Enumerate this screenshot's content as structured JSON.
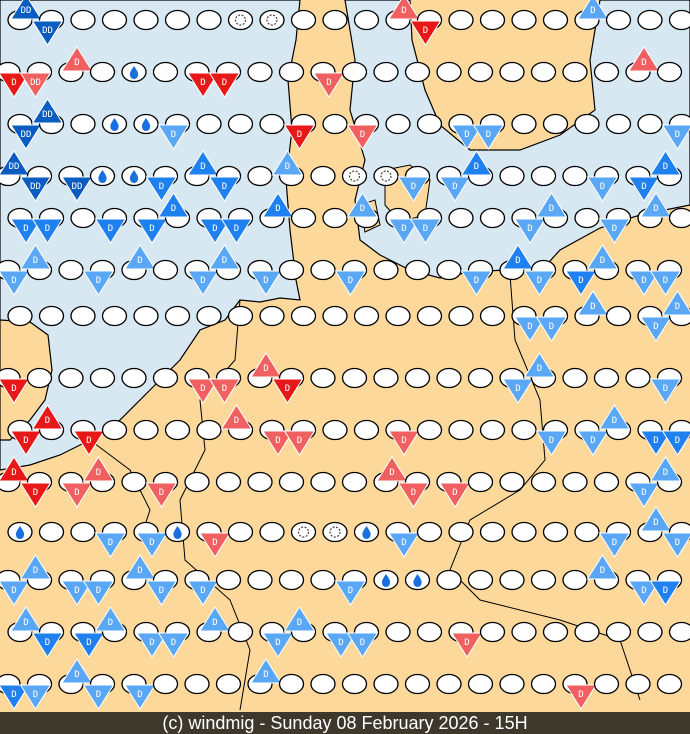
{
  "caption": "(c) windmig - Sunday 08 February 2026 - 15H",
  "colors": {
    "sea": "#d7e8f3",
    "land": "#fcd99b",
    "dark_blue": "#0a5cc0",
    "blue": "#1f80f0",
    "light_blue": "#5aa8f5",
    "red": "#e81818",
    "dark_red": "#c00000",
    "light_red": "#f06060"
  },
  "legend_codes": {
    "o": "cloud",
    "r": "rain",
    "f": "fog",
    "b": "D",
    "B": "DD",
    "l": "D",
    "R": "D",
    "p": "D",
    "S": "DD"
  },
  "rows": [
    "B B o o o o o f f o o o p R o o o o l o o o",
    "R S p o r o R R o o p o o o o o o o o o p o",
    "B B o r r l o o o R o p o o l l o o o o o l",
    "B B B r r b b b o l o f f l l b o o o l b b",
    "b b o b b b b b b o o l l l o o l l o l l o",
    "l l o l l o l l l o o l o o o l b l b l l l",
    "o o o o o o o o o o o o o o o o l l l o l l",
    "R o o o o o p p p R o o o o o o l l o o o l",
    "R R R o o o o p p p o o p o o o o l l l b b",
    "R R p p o p o o o o o o p p p o o o o o l l",
    "r o o l l r p o o f f r l o o o o o o l l l",
    "l l l l l l l o o o o l r r o o o o o l l b",
    "l b b l l l l o l l l l o o p o o o o o o o",
    "b l l l l o o o l o o o o o o o o o p o o o"
  ]
}
